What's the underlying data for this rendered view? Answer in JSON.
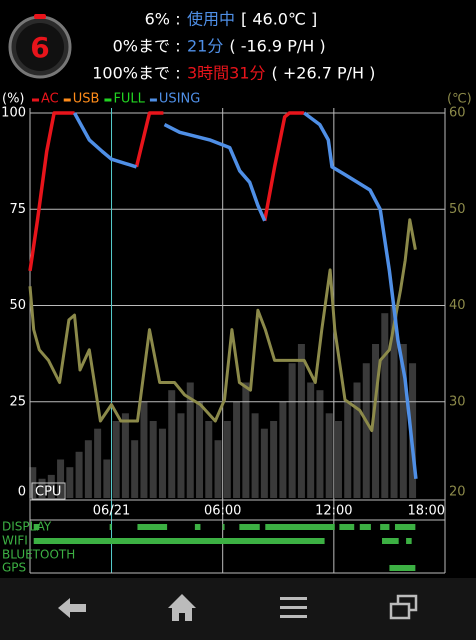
{
  "status": {
    "icon_level": "6",
    "separator": ":",
    "rows": [
      {
        "label": "6%",
        "value": "使用中",
        "extra": "[ 46.0℃ ]"
      },
      {
        "label": "0%まで",
        "value": "21分",
        "extra": "( -16.9 P/H )"
      },
      {
        "label": "100%まで",
        "value": "3時間31分",
        "extra": "( +26.7 P/H )"
      }
    ]
  },
  "chart_data": {
    "type": "line",
    "ylabel": "(%)",
    "y2label": "(℃)",
    "cpu_label": "CPU",
    "xlim": [
      -4.4,
      18
    ],
    "ylim": [
      0,
      100
    ],
    "y2lim": [
      20,
      60
    ],
    "xticks": [
      {
        "value": 0,
        "label": "06/21"
      },
      {
        "value": 6,
        "label": "06:00"
      },
      {
        "value": 12,
        "label": "12:00"
      },
      {
        "value": 18,
        "label": "18:00"
      }
    ],
    "yticks": [
      0,
      25,
      50,
      75,
      100
    ],
    "y2ticks": [
      20,
      30,
      40,
      50,
      60
    ],
    "grid": true,
    "series": [
      {
        "name": "AC",
        "color": "#e8141b",
        "x": [
          -4.4,
          -4.0,
          -3.5,
          -3.1,
          -2.0,
          0.5,
          1.35,
          2.05,
          2.8,
          5.5,
          8.27,
          8.8,
          9.35,
          9.6,
          10.4
        ],
        "values": [
          59,
          72,
          90,
          100,
          100,
          null,
          86,
          100,
          100,
          null,
          72,
          86,
          99,
          100,
          100
        ]
      },
      {
        "name": "USB",
        "color": "#ff8c1a",
        "x": [],
        "values": []
      },
      {
        "name": "FULL",
        "color": "#22d422",
        "x": [],
        "values": []
      },
      {
        "name": "USING",
        "color": "#4f8fe6",
        "x": [
          -2.0,
          -1.2,
          -0.5,
          0,
          1.35,
          2.1,
          2.86,
          3.68,
          5.3,
          6.38,
          6.92,
          7.46,
          7.9,
          8.27,
          9.3,
          10.4,
          11.24,
          11.7,
          11.9,
          12.6,
          13.95,
          14.5,
          15.0,
          15.46,
          15.84,
          16.2,
          16.43
        ],
        "values": [
          100,
          93,
          90,
          88,
          86,
          null,
          97,
          95,
          93,
          91,
          85,
          82,
          76,
          72,
          null,
          100,
          97,
          93,
          86,
          84,
          80,
          75,
          59,
          41,
          31,
          15,
          5
        ]
      }
    ],
    "temperature": {
      "color": "#8c8a4a",
      "axis": "y2",
      "x": [
        -4.4,
        -4.2,
        -3.9,
        -3.4,
        -2.8,
        -2.3,
        -2.0,
        -1.7,
        -1.2,
        -0.6,
        0,
        0.5,
        1.4,
        2.05,
        2.6,
        3.4,
        3.95,
        4.8,
        5.6,
        6.1,
        6.5,
        6.9,
        7.5,
        7.9,
        8.3,
        8.8,
        9.6,
        10.4,
        11.0,
        11.35,
        11.8,
        12.05,
        12.6,
        13.4,
        14.05,
        14.5,
        15.0,
        15.6,
        15.85,
        16.1,
        16.4
      ],
      "values": [
        42,
        37.5,
        35.4,
        34.3,
        32,
        38.5,
        39,
        33.3,
        35.4,
        28,
        29.7,
        28,
        28,
        37.5,
        32,
        32,
        30.7,
        29.7,
        28,
        30.2,
        37.5,
        32,
        31.2,
        39.5,
        37.5,
        34.3,
        34.3,
        34.3,
        32,
        37.5,
        43.7,
        37.5,
        30.2,
        29.1,
        27,
        34.3,
        35.4,
        41.6,
        44.7,
        48.9,
        45.8
      ]
    },
    "cpu": {
      "color": "#3a3a3a",
      "x": [
        -4.25,
        -3.75,
        -3.25,
        -2.75,
        -2.25,
        -1.75,
        -1.25,
        -0.75,
        -0.25,
        0.25,
        0.75,
        1.25,
        1.75,
        2.25,
        2.75,
        3.25,
        3.75,
        4.25,
        4.75,
        5.25,
        5.75,
        6.25,
        6.75,
        7.25,
        7.75,
        8.25,
        8.75,
        9.25,
        9.75,
        10.25,
        10.75,
        11.25,
        11.75,
        12.25,
        12.75,
        13.25,
        13.75,
        14.25,
        14.75,
        15.25,
        15.75,
        16.25
      ],
      "values": [
        8,
        5,
        6,
        10,
        8,
        12,
        15,
        18,
        10,
        20,
        22,
        15,
        25,
        20,
        18,
        28,
        22,
        30,
        25,
        20,
        15,
        20,
        25,
        30,
        22,
        18,
        20,
        25,
        35,
        40,
        30,
        28,
        22,
        20,
        25,
        30,
        35,
        40,
        48,
        50,
        40,
        35
      ]
    },
    "timeline_color": "#3cb043",
    "timeline": [
      {
        "name": "DISPLAY",
        "segments": [
          [
            -4.2,
            -3.9
          ],
          [
            -0.1,
            0
          ],
          [
            1.4,
            3.0
          ],
          [
            4.5,
            4.8
          ],
          [
            6.0,
            6.1
          ],
          [
            6.9,
            8.0
          ],
          [
            8.3,
            12.05
          ],
          [
            12.3,
            13.1
          ],
          [
            13.4,
            14.0
          ],
          [
            14.5,
            15.0
          ],
          [
            15.3,
            16.4
          ]
        ]
      },
      {
        "name": "WIFI",
        "segments": [
          [
            -4.2,
            11.5
          ],
          [
            14.6,
            15.5
          ],
          [
            15.9,
            16.2
          ]
        ]
      },
      {
        "name": "BLUETOOTH",
        "segments": []
      },
      {
        "name": "GPS",
        "segments": [
          [
            15.0,
            16.4
          ]
        ]
      }
    ]
  }
}
